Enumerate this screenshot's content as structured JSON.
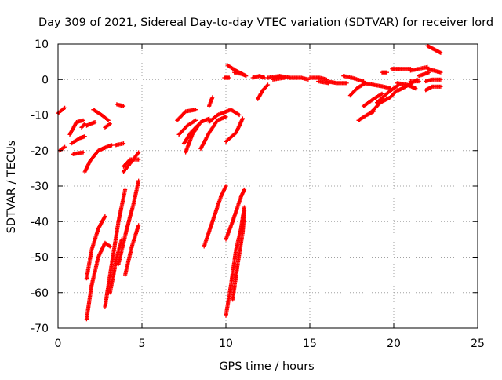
{
  "chart_data": {
    "type": "scatter",
    "title": "Day 309 of 2021, Sidereal Day-to-day VTEC variation (SDTVAR) for receiver lord",
    "xlabel": "GPS time / hours",
    "ylabel": "SDTVAR / TECUs",
    "xlim": [
      0,
      25
    ],
    "ylim": [
      -70,
      10
    ],
    "xticks": [
      "0",
      "5",
      "10",
      "15",
      "20",
      "25"
    ],
    "yticks": [
      "10",
      "0",
      "-10",
      "-20",
      "-30",
      "-40",
      "-50",
      "-60",
      "-70"
    ],
    "grid": true,
    "marker": "+",
    "marker_color": "#ff0000",
    "series": [
      {
        "name": "arc-1",
        "points": [
          [
            0.0,
            -9.5
          ],
          [
            0.4,
            -8.0
          ]
        ]
      },
      {
        "name": "arc-2",
        "points": [
          [
            0.1,
            -20.0
          ],
          [
            0.4,
            -19.0
          ]
        ]
      },
      {
        "name": "arc-3",
        "points": [
          [
            0.7,
            -15.5
          ],
          [
            1.1,
            -12.0
          ],
          [
            1.5,
            -11.5
          ]
        ]
      },
      {
        "name": "arc-4",
        "points": [
          [
            0.8,
            -18.0
          ],
          [
            1.3,
            -16.5
          ],
          [
            1.6,
            -16.0
          ]
        ]
      },
      {
        "name": "arc-5",
        "points": [
          [
            0.9,
            -21.0
          ],
          [
            1.5,
            -20.5
          ]
        ]
      },
      {
        "name": "arc-6",
        "points": [
          [
            1.4,
            -13.5
          ],
          [
            1.6,
            -12.5
          ]
        ]
      },
      {
        "name": "arc-7",
        "points": [
          [
            1.6,
            -26.0
          ],
          [
            1.9,
            -23.0
          ],
          [
            2.4,
            -20.0
          ],
          [
            2.9,
            -19.0
          ],
          [
            3.2,
            -18.5
          ]
        ]
      },
      {
        "name": "arc-8",
        "points": [
          [
            1.7,
            -13.0
          ],
          [
            2.2,
            -12.0
          ]
        ]
      },
      {
        "name": "arc-9",
        "points": [
          [
            2.1,
            -8.5
          ],
          [
            2.6,
            -10.0
          ],
          [
            3.0,
            -11.5
          ]
        ]
      },
      {
        "name": "arc-10",
        "points": [
          [
            2.8,
            -13.5
          ],
          [
            3.1,
            -12.5
          ]
        ]
      },
      {
        "name": "arc-11",
        "points": [
          [
            3.4,
            -18.5
          ],
          [
            3.9,
            -18.0
          ]
        ]
      },
      {
        "name": "arc-12",
        "points": [
          [
            3.5,
            -7.0
          ],
          [
            3.9,
            -7.5
          ]
        ]
      },
      {
        "name": "arc-13",
        "points": [
          [
            3.9,
            -26.0
          ],
          [
            4.4,
            -23.0
          ],
          [
            4.8,
            -20.5
          ]
        ]
      },
      {
        "name": "arc-14",
        "points": [
          [
            3.9,
            -24.5
          ],
          [
            4.3,
            -22.5
          ],
          [
            4.8,
            -22.5
          ]
        ]
      },
      {
        "name": "arc-15",
        "points": [
          [
            1.7,
            -56.0
          ],
          [
            2.0,
            -48.0
          ],
          [
            2.4,
            -42.0
          ],
          [
            2.8,
            -38.5
          ]
        ]
      },
      {
        "name": "arc-16",
        "points": [
          [
            1.7,
            -67.5
          ],
          [
            2.0,
            -58.0
          ],
          [
            2.4,
            -50.0
          ],
          [
            2.8,
            -46.0
          ],
          [
            3.1,
            -47.0
          ]
        ]
      },
      {
        "name": "arc-17",
        "points": [
          [
            2.8,
            -64.0
          ],
          [
            3.2,
            -52.0
          ],
          [
            3.6,
            -40.0
          ],
          [
            4.0,
            -31.0
          ]
        ]
      },
      {
        "name": "arc-18",
        "points": [
          [
            3.1,
            -60.0
          ],
          [
            3.5,
            -50.0
          ],
          [
            3.8,
            -45.0
          ]
        ]
      },
      {
        "name": "arc-19",
        "points": [
          [
            3.6,
            -52.0
          ],
          [
            4.1,
            -42.0
          ],
          [
            4.5,
            -35.0
          ],
          [
            4.8,
            -28.5
          ]
        ]
      },
      {
        "name": "arc-20",
        "points": [
          [
            4.0,
            -55.0
          ],
          [
            4.4,
            -47.0
          ],
          [
            4.8,
            -41.0
          ]
        ]
      },
      {
        "name": "arc-21",
        "points": [
          [
            7.1,
            -11.5
          ],
          [
            7.6,
            -9.0
          ],
          [
            8.2,
            -8.5
          ]
        ]
      },
      {
        "name": "arc-22",
        "points": [
          [
            7.2,
            -15.5
          ],
          [
            7.7,
            -13.0
          ],
          [
            8.2,
            -11.5
          ]
        ]
      },
      {
        "name": "arc-23",
        "points": [
          [
            7.5,
            -18.0
          ],
          [
            7.9,
            -15.0
          ],
          [
            8.3,
            -13.0
          ]
        ]
      },
      {
        "name": "arc-24",
        "points": [
          [
            7.6,
            -20.5
          ],
          [
            8.0,
            -15.5
          ],
          [
            8.5,
            -12.0
          ],
          [
            9.0,
            -11.0
          ]
        ]
      },
      {
        "name": "arc-25",
        "points": [
          [
            8.5,
            -19.5
          ],
          [
            9.0,
            -15.0
          ],
          [
            9.5,
            -11.5
          ],
          [
            10.0,
            -10.5
          ]
        ]
      },
      {
        "name": "arc-26",
        "points": [
          [
            9.0,
            -12.0
          ],
          [
            9.5,
            -10.0
          ],
          [
            10.3,
            -8.5
          ],
          [
            10.8,
            -10.0
          ]
        ]
      },
      {
        "name": "arc-27",
        "points": [
          [
            10.0,
            -17.5
          ],
          [
            10.6,
            -15.0
          ],
          [
            11.0,
            -11.0
          ]
        ]
      },
      {
        "name": "arc-28",
        "points": [
          [
            9.0,
            -7.5
          ],
          [
            9.2,
            -5.0
          ]
        ]
      },
      {
        "name": "arc-29",
        "points": [
          [
            8.7,
            -47.0
          ],
          [
            9.2,
            -40.0
          ],
          [
            9.7,
            -33.0
          ],
          [
            10.0,
            -30.0
          ]
        ]
      },
      {
        "name": "arc-30",
        "points": [
          [
            10.0,
            -45.0
          ],
          [
            10.4,
            -40.0
          ],
          [
            10.9,
            -33.0
          ],
          [
            11.1,
            -31.0
          ]
        ]
      },
      {
        "name": "arc-31",
        "points": [
          [
            10.0,
            -66.5
          ],
          [
            10.3,
            -58.0
          ],
          [
            10.6,
            -48.0
          ],
          [
            10.9,
            -42.0
          ],
          [
            11.1,
            -36.0
          ]
        ]
      },
      {
        "name": "arc-32",
        "points": [
          [
            10.4,
            -62.0
          ],
          [
            10.7,
            -52.0
          ],
          [
            11.0,
            -43.0
          ],
          [
            11.1,
            -37.0
          ]
        ]
      },
      {
        "name": "arc-33",
        "points": [
          [
            9.9,
            0.5
          ],
          [
            10.2,
            0.5
          ]
        ]
      },
      {
        "name": "arc-34",
        "points": [
          [
            10.1,
            4.0
          ],
          [
            10.6,
            2.5
          ],
          [
            11.2,
            1.0
          ]
        ]
      },
      {
        "name": "arc-35",
        "points": [
          [
            10.5,
            2.0
          ],
          [
            11.0,
            1.5
          ]
        ]
      },
      {
        "name": "arc-36",
        "points": [
          [
            11.6,
            0.5
          ],
          [
            12.0,
            1.0
          ],
          [
            12.3,
            0.5
          ]
        ]
      },
      {
        "name": "arc-37",
        "points": [
          [
            11.9,
            -5.5
          ],
          [
            12.2,
            -3.0
          ],
          [
            12.5,
            -1.5
          ]
        ]
      },
      {
        "name": "arc-38",
        "points": [
          [
            12.5,
            0.5
          ],
          [
            13.2,
            1.0
          ],
          [
            13.8,
            0.5
          ]
        ]
      },
      {
        "name": "arc-39",
        "points": [
          [
            12.8,
            0.0
          ],
          [
            13.5,
            0.5
          ]
        ]
      },
      {
        "name": "arc-40",
        "points": [
          [
            13.8,
            0.5
          ],
          [
            14.5,
            0.5
          ],
          [
            14.9,
            0.0
          ]
        ]
      },
      {
        "name": "arc-41",
        "points": [
          [
            15.0,
            0.5
          ],
          [
            15.6,
            0.5
          ],
          [
            16.0,
            0.0
          ]
        ]
      },
      {
        "name": "arc-42",
        "points": [
          [
            15.5,
            -0.5
          ],
          [
            16.1,
            -1.0
          ]
        ]
      },
      {
        "name": "arc-43",
        "points": [
          [
            16.0,
            -0.5
          ],
          [
            16.6,
            -1.0
          ],
          [
            17.2,
            -1.0
          ]
        ]
      },
      {
        "name": "arc-44",
        "points": [
          [
            17.0,
            1.0
          ],
          [
            17.5,
            0.5
          ],
          [
            18.2,
            -0.5
          ]
        ]
      },
      {
        "name": "arc-45",
        "points": [
          [
            17.4,
            -4.5
          ],
          [
            17.8,
            -2.5
          ],
          [
            18.3,
            -1.0
          ]
        ]
      },
      {
        "name": "arc-46",
        "points": [
          [
            18.2,
            -1.0
          ],
          [
            18.8,
            -1.5
          ],
          [
            19.4,
            -2.0
          ],
          [
            19.8,
            -2.5
          ]
        ]
      },
      {
        "name": "arc-47",
        "points": [
          [
            17.9,
            -11.5
          ],
          [
            18.4,
            -10.0
          ],
          [
            18.8,
            -9.0
          ]
        ]
      },
      {
        "name": "arc-48",
        "points": [
          [
            18.2,
            -7.5
          ],
          [
            18.8,
            -5.5
          ],
          [
            19.3,
            -4.0
          ]
        ]
      },
      {
        "name": "arc-49",
        "points": [
          [
            18.6,
            -9.5
          ],
          [
            19.2,
            -6.5
          ],
          [
            19.8,
            -5.0
          ],
          [
            20.2,
            -3.0
          ]
        ]
      },
      {
        "name": "arc-50",
        "points": [
          [
            19.0,
            -6.5
          ],
          [
            19.7,
            -3.5
          ],
          [
            20.3,
            -1.5
          ]
        ]
      },
      {
        "name": "arc-51",
        "points": [
          [
            19.3,
            2.0
          ],
          [
            19.6,
            2.0
          ]
        ]
      },
      {
        "name": "arc-52",
        "points": [
          [
            19.9,
            3.0
          ],
          [
            20.5,
            3.0
          ],
          [
            21.0,
            3.0
          ]
        ]
      },
      {
        "name": "arc-53",
        "points": [
          [
            20.2,
            -1.0
          ],
          [
            20.8,
            -1.5
          ],
          [
            21.3,
            -2.5
          ]
        ]
      },
      {
        "name": "arc-54",
        "points": [
          [
            20.3,
            -3.0
          ],
          [
            20.9,
            -1.5
          ],
          [
            21.4,
            0.0
          ]
        ]
      },
      {
        "name": "arc-55",
        "points": [
          [
            21.0,
            2.5
          ],
          [
            21.5,
            3.0
          ],
          [
            22.0,
            3.5
          ]
        ]
      },
      {
        "name": "arc-56",
        "points": [
          [
            21.0,
            -0.5
          ],
          [
            21.5,
            -0.5
          ]
        ]
      },
      {
        "name": "arc-57",
        "points": [
          [
            21.5,
            1.0
          ],
          [
            22.1,
            2.0
          ]
        ]
      },
      {
        "name": "arc-58",
        "points": [
          [
            22.0,
            9.5
          ],
          [
            22.4,
            8.5
          ],
          [
            22.8,
            7.5
          ]
        ]
      },
      {
        "name": "arc-59",
        "points": [
          [
            22.0,
            3.0
          ],
          [
            22.8,
            2.0
          ]
        ]
      },
      {
        "name": "arc-60",
        "points": [
          [
            21.9,
            -3.0
          ],
          [
            22.3,
            -2.0
          ],
          [
            22.8,
            -2.0
          ]
        ]
      },
      {
        "name": "arc-61",
        "points": [
          [
            21.9,
            -0.5
          ],
          [
            22.3,
            0.0
          ],
          [
            22.8,
            0.0
          ]
        ]
      }
    ]
  }
}
